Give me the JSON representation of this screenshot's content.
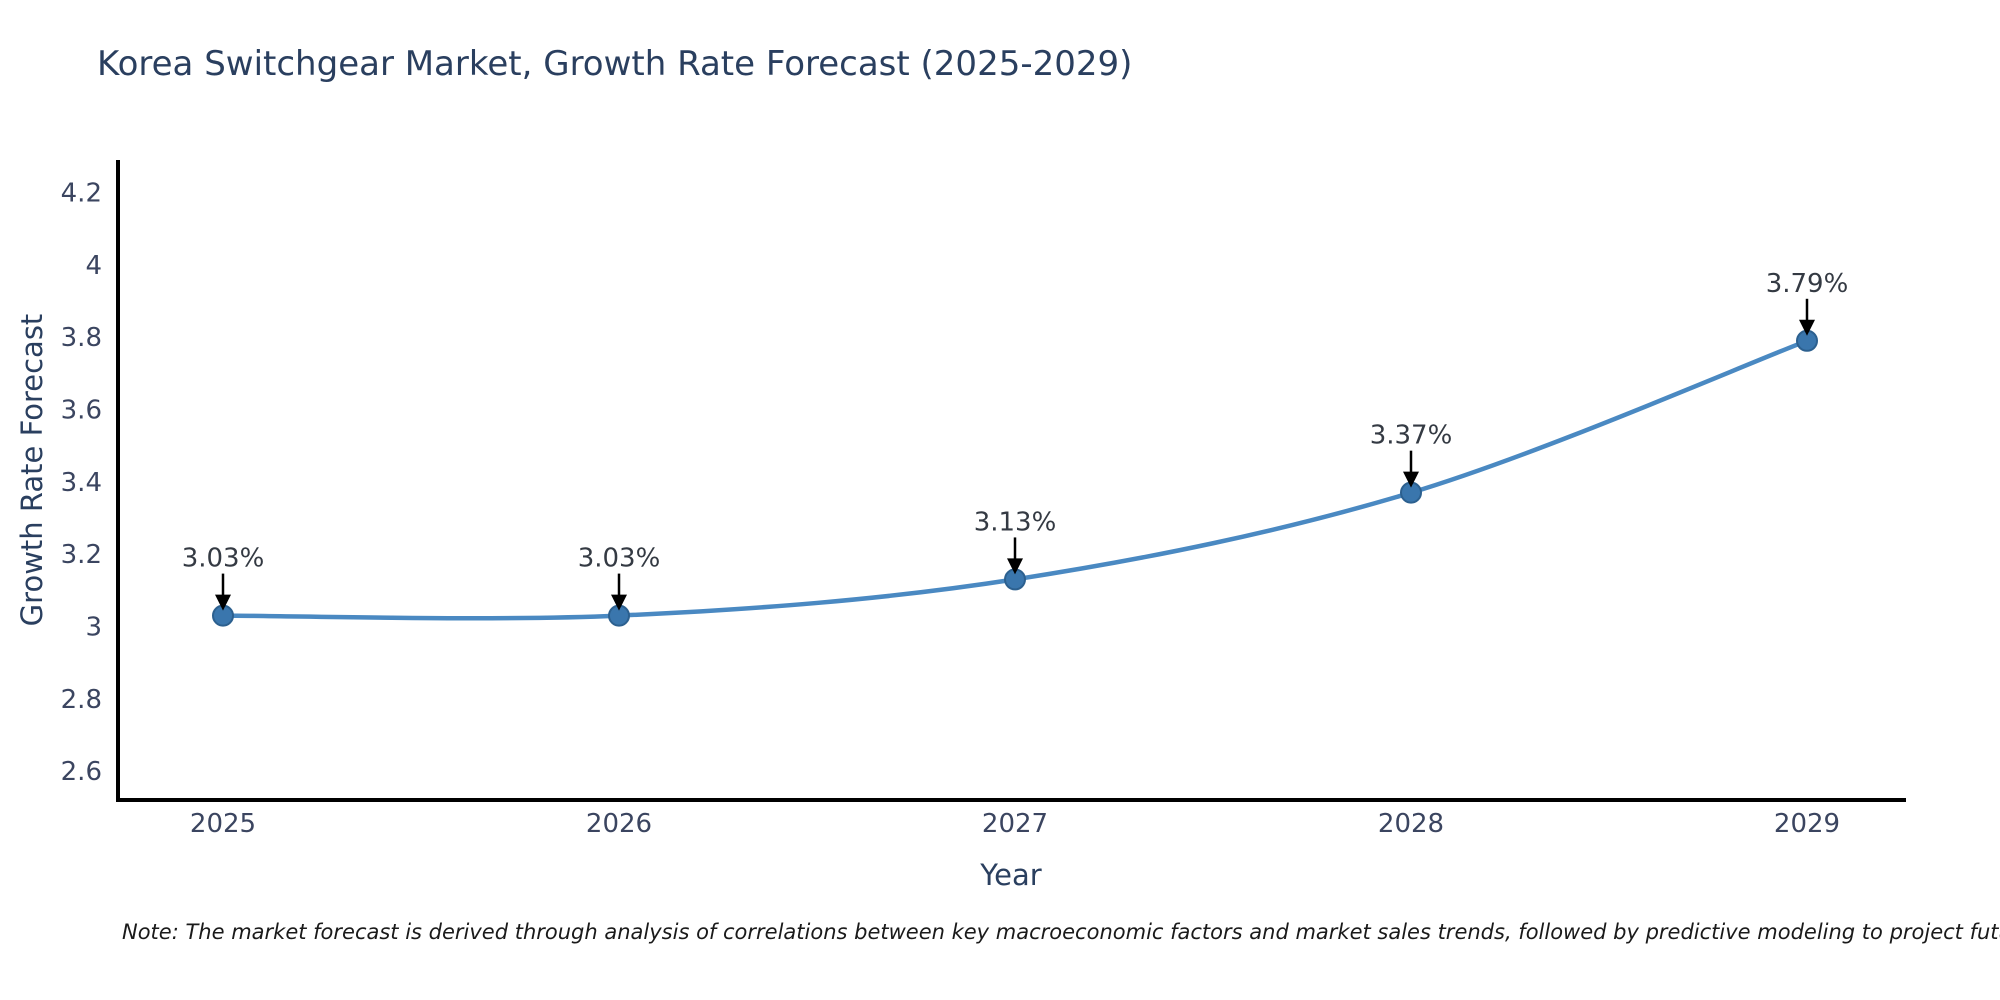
{
  "chart_data": {
    "type": "line",
    "title": "Korea Switchgear Market, Growth Rate Forecast (2025-2029)",
    "xlabel": "Year",
    "ylabel": "Growth Rate Forecast",
    "categories": [
      "2025",
      "2026",
      "2027",
      "2028",
      "2029"
    ],
    "values": [
      3.03,
      3.03,
      3.13,
      3.37,
      3.79
    ],
    "point_labels": [
      "3.03%",
      "3.03%",
      "3.13%",
      "3.37%",
      "3.79%"
    ],
    "y_ticks": [
      2.6,
      2.8,
      3.0,
      3.2,
      3.4,
      3.6,
      3.8,
      4.0,
      4.2
    ],
    "ylim": [
      2.52,
      4.29
    ],
    "line_shape": "spline",
    "grid": false,
    "legend_position": "none",
    "colors": {
      "line": "#4a89c2",
      "marker": "#3a76ad",
      "marker_edge": "#2c608f",
      "axis": "#000000",
      "tick_label": "#3b4560",
      "axis_title": "#2a3f5f",
      "annotation_text": "#343a43",
      "annotation_arrow": "#000000",
      "title": "#2a3f5f"
    }
  },
  "note": "Note: The market forecast is derived through analysis of correlations between key macroeconomic factors and market sales trends, followed by predictive modeling to project future sales"
}
